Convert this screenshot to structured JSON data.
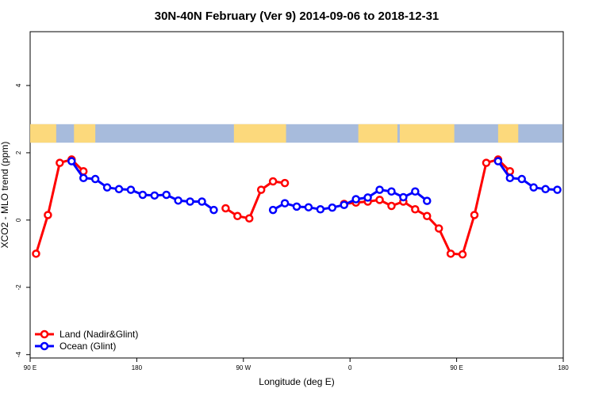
{
  "chart_data": {
    "type": "line",
    "title": "30N-40N February (Ver 9)   2014-09-06 to 2018-12-31",
    "xlabel": "Longitude (deg E)",
    "ylabel": "XCO2 - MLO trend (ppm)",
    "x_axis": {
      "ticks": [
        90,
        180,
        270,
        360,
        450,
        540
      ],
      "tick_labels": [
        "90 E",
        "180",
        "90 W",
        "0",
        "90 E",
        "180"
      ],
      "range": [
        90,
        540
      ]
    },
    "y_axis": {
      "ticks": [
        -4,
        -2,
        0,
        2,
        4
      ],
      "tick_labels": [
        "-4",
        "-2",
        "0",
        "2",
        "4"
      ],
      "range": [
        -4.1,
        5.6
      ]
    },
    "grid": false,
    "legend_position": "bottom-left",
    "land_mask_strip": {
      "y_range": [
        2.3,
        2.85
      ],
      "colors": {
        "ocean": "#a7bbdc",
        "land": "#fcd97c"
      }
    },
    "series": [
      {
        "name": "Land (Nadir&Glint)",
        "color": "#ff0000",
        "segments": [
          [
            [
              95,
              -1.0
            ],
            [
              105,
              0.15
            ],
            [
              115,
              1.7
            ],
            [
              125,
              1.8
            ],
            [
              135,
              1.45
            ]
          ],
          [
            [
              255,
              0.35
            ],
            [
              265,
              0.12
            ],
            [
              275,
              0.05
            ],
            [
              285,
              0.9
            ],
            [
              295,
              1.15
            ],
            [
              305,
              1.1
            ]
          ],
          [
            [
              355,
              0.48
            ],
            [
              365,
              0.52
            ],
            [
              375,
              0.55
            ],
            [
              385,
              0.6
            ],
            [
              395,
              0.42
            ],
            [
              405,
              0.55
            ],
            [
              415,
              0.32
            ],
            [
              425,
              0.12
            ],
            [
              435,
              -0.25
            ],
            [
              445,
              -1.0
            ],
            [
              455,
              -1.02
            ],
            [
              465,
              0.15
            ],
            [
              475,
              1.7
            ],
            [
              485,
              1.8
            ],
            [
              495,
              1.45
            ]
          ]
        ]
      },
      {
        "name": "Ocean (Glint)",
        "color": "#0000ff",
        "segments": [
          [
            [
              125,
              1.75
            ],
            [
              135,
              1.25
            ],
            [
              145,
              1.22
            ],
            [
              155,
              0.97
            ],
            [
              165,
              0.92
            ],
            [
              175,
              0.9
            ],
            [
              185,
              0.75
            ],
            [
              195,
              0.73
            ],
            [
              205,
              0.75
            ],
            [
              215,
              0.58
            ],
            [
              225,
              0.55
            ],
            [
              235,
              0.55
            ],
            [
              245,
              0.3
            ]
          ],
          [
            [
              295,
              0.3
            ],
            [
              305,
              0.5
            ],
            [
              315,
              0.4
            ],
            [
              325,
              0.38
            ],
            [
              335,
              0.32
            ],
            [
              345,
              0.37
            ],
            [
              355,
              0.45
            ],
            [
              365,
              0.62
            ],
            [
              375,
              0.67
            ],
            [
              385,
              0.9
            ],
            [
              395,
              0.85
            ],
            [
              405,
              0.68
            ],
            [
              415,
              0.85
            ],
            [
              425,
              0.57
            ]
          ],
          [
            [
              485,
              1.75
            ],
            [
              495,
              1.25
            ],
            [
              505,
              1.22
            ],
            [
              515,
              0.97
            ],
            [
              525,
              0.92
            ],
            [
              535,
              0.9
            ]
          ]
        ]
      }
    ]
  }
}
